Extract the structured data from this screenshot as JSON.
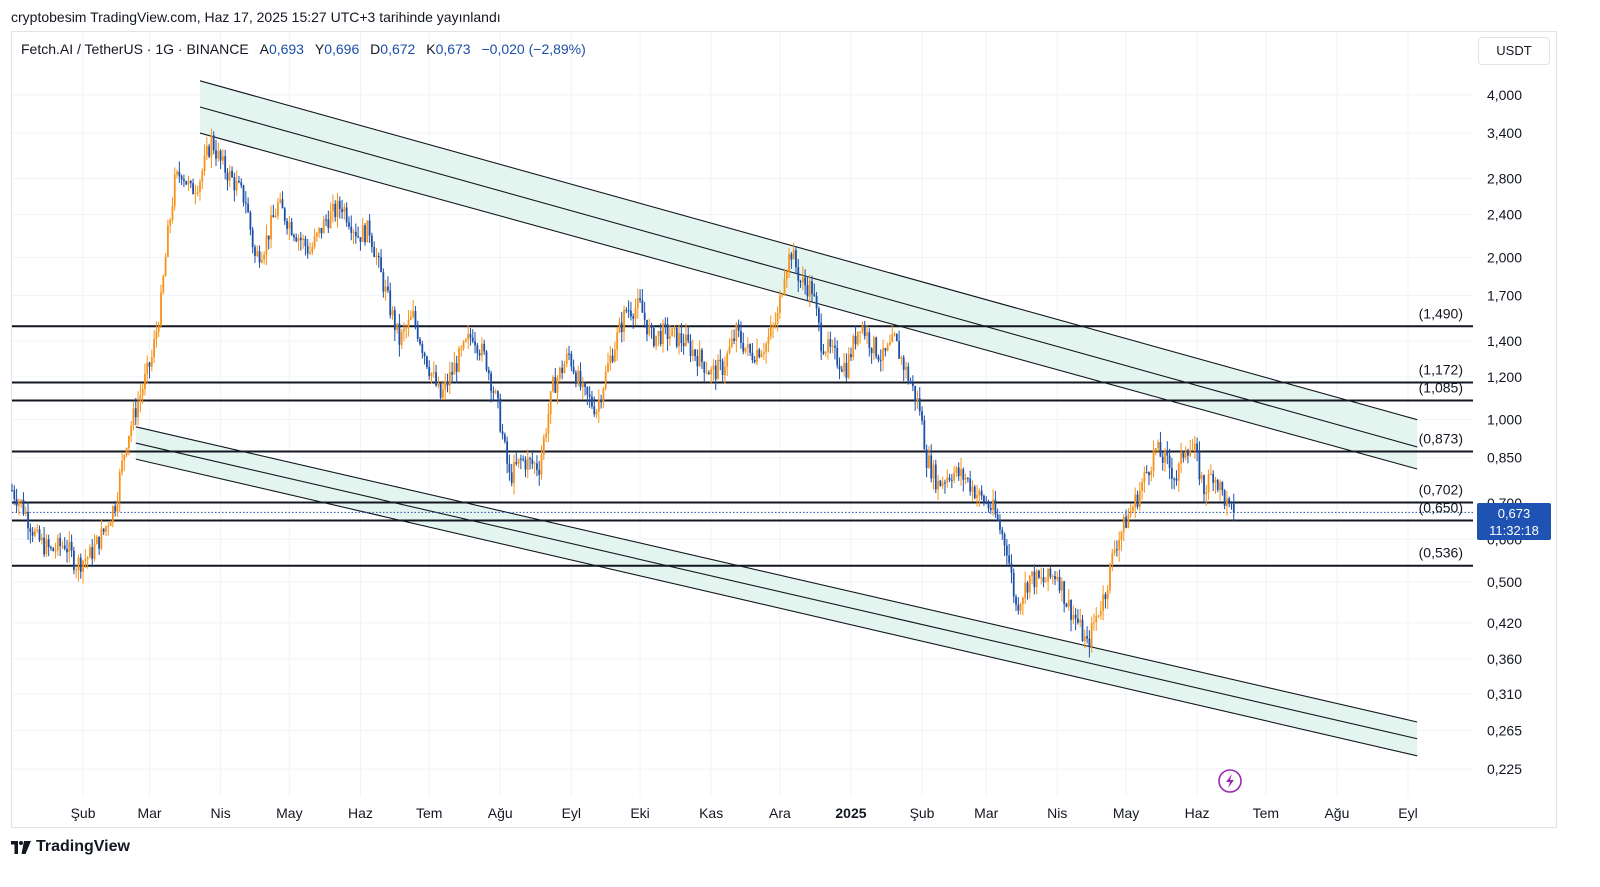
{
  "header": {
    "caption": "cryptobesim TradingView.com, Haz 17, 2025 15:27 UTC+3 tarihinde yayınlandı"
  },
  "legend": {
    "symbol": "Fetch.AI / TetherUS · 1G · BINANCE",
    "open_label": "A",
    "open": "0,693",
    "high_label": "Y",
    "high": "0,696",
    "low_label": "D",
    "low": "0,672",
    "close_label": "K",
    "close": "0,673",
    "change": "−0,020 (−2,89%)"
  },
  "toolbar": {
    "currency": "USDT"
  },
  "price_tag": {
    "price": "0,673",
    "countdown": "11:32:18"
  },
  "brand": {
    "name": "TradingView"
  },
  "chart_data": {
    "type": "candlestick",
    "scale": "log",
    "colors": {
      "up": "#f7931a",
      "down": "#1c4fa8",
      "channel_fill": "#e4f5ef",
      "line": "#131722"
    },
    "y_ticks": [
      "4,000",
      "3,400",
      "2,800",
      "2,400",
      "2,000",
      "1,700",
      "1,400",
      "1,200",
      "1,000",
      "0,850",
      "0,700",
      "0,600",
      "0,500",
      "0,420",
      "0,360",
      "0,310",
      "0,265",
      "0,225"
    ],
    "y_tick_values": [
      4.0,
      3.4,
      2.8,
      2.4,
      2.0,
      1.7,
      1.4,
      1.2,
      1.0,
      0.85,
      0.7,
      0.6,
      0.5,
      0.42,
      0.36,
      0.31,
      0.265,
      0.225
    ],
    "x_ticks": [
      {
        "label": "Şub",
        "date": "2024-02-01",
        "bold": false
      },
      {
        "label": "Mar",
        "date": "2024-03-01",
        "bold": false
      },
      {
        "label": "Nis",
        "date": "2024-04-01",
        "bold": false
      },
      {
        "label": "May",
        "date": "2024-05-01",
        "bold": false
      },
      {
        "label": "Haz",
        "date": "2024-06-01",
        "bold": false
      },
      {
        "label": "Tem",
        "date": "2024-07-01",
        "bold": false
      },
      {
        "label": "Ağu",
        "date": "2024-08-01",
        "bold": false
      },
      {
        "label": "Eyl",
        "date": "2024-09-01",
        "bold": false
      },
      {
        "label": "Eki",
        "date": "2024-10-01",
        "bold": false
      },
      {
        "label": "Kas",
        "date": "2024-11-01",
        "bold": false
      },
      {
        "label": "Ara",
        "date": "2024-12-01",
        "bold": false
      },
      {
        "label": "2025",
        "date": "2025-01-01",
        "bold": true
      },
      {
        "label": "Şub",
        "date": "2025-02-01",
        "bold": false
      },
      {
        "label": "Mar",
        "date": "2025-03-01",
        "bold": false
      },
      {
        "label": "Nis",
        "date": "2025-04-01",
        "bold": false
      },
      {
        "label": "May",
        "date": "2025-05-01",
        "bold": false
      },
      {
        "label": "Haz",
        "date": "2025-06-01",
        "bold": false
      },
      {
        "label": "Tem",
        "date": "2025-07-01",
        "bold": false
      },
      {
        "label": "Ağu",
        "date": "2025-08-01",
        "bold": false
      },
      {
        "label": "Eyl",
        "date": "2025-09-01",
        "bold": false
      }
    ],
    "levels": [
      {
        "label": "(1,490)",
        "value": 1.49
      },
      {
        "label": "(1,172)",
        "value": 1.172
      },
      {
        "label": "(1,085)",
        "value": 1.085
      },
      {
        "label": "(0,873)",
        "value": 0.873
      },
      {
        "label": "(0,702)",
        "value": 0.702
      },
      {
        "label": "(0,650)",
        "value": 0.65
      },
      {
        "label": "(0,536)",
        "value": 0.536
      }
    ],
    "current_price": 0.673,
    "channels": [
      {
        "name": "upper",
        "start_date": "2024-03-23",
        "end_date": "2025-09-05",
        "top": [
          4.25,
          1.0
        ],
        "mid": [
          3.8,
          0.89
        ],
        "bottom": [
          3.4,
          0.81
        ]
      },
      {
        "name": "lower",
        "start_date": "2024-02-24",
        "end_date": "2025-09-05",
        "top": [
          0.97,
          0.275
        ],
        "mid": [
          0.905,
          0.256
        ],
        "bottom": [
          0.845,
          0.238
        ]
      }
    ],
    "price_path": [
      [
        "2024-01-01",
        0.74
      ],
      [
        "2024-01-05",
        0.7
      ],
      [
        "2024-01-12",
        0.6
      ],
      [
        "2024-01-18",
        0.57
      ],
      [
        "2024-01-24",
        0.59
      ],
      [
        "2024-01-29",
        0.54
      ],
      [
        "2024-02-04",
        0.56
      ],
      [
        "2024-02-10",
        0.62
      ],
      [
        "2024-02-15",
        0.7
      ],
      [
        "2024-02-20",
        0.92
      ],
      [
        "2024-02-25",
        1.08
      ],
      [
        "2024-03-02",
        1.3
      ],
      [
        "2024-03-06",
        1.65
      ],
      [
        "2024-03-09",
        2.2
      ],
      [
        "2024-03-12",
        2.75
      ],
      [
        "2024-03-15",
        2.9
      ],
      [
        "2024-03-19",
        2.65
      ],
      [
        "2024-03-23",
        2.8
      ],
      [
        "2024-03-28",
        3.3
      ],
      [
        "2024-04-01",
        3.0
      ],
      [
        "2024-04-07",
        2.75
      ],
      [
        "2024-04-12",
        2.55
      ],
      [
        "2024-04-16",
        2.0
      ],
      [
        "2024-04-20",
        2.1
      ],
      [
        "2024-04-26",
        2.5
      ],
      [
        "2024-05-03",
        2.25
      ],
      [
        "2024-05-10",
        2.05
      ],
      [
        "2024-05-17",
        2.35
      ],
      [
        "2024-05-24",
        2.5
      ],
      [
        "2024-05-31",
        2.2
      ],
      [
        "2024-06-05",
        2.25
      ],
      [
        "2024-06-10",
        1.85
      ],
      [
        "2024-06-18",
        1.4
      ],
      [
        "2024-06-24",
        1.55
      ],
      [
        "2024-07-01",
        1.25
      ],
      [
        "2024-07-06",
        1.1
      ],
      [
        "2024-07-12",
        1.25
      ],
      [
        "2024-07-20",
        1.45
      ],
      [
        "2024-07-26",
        1.28
      ],
      [
        "2024-07-31",
        1.05
      ],
      [
        "2024-08-05",
        0.78
      ],
      [
        "2024-08-10",
        0.84
      ],
      [
        "2024-08-18",
        0.82
      ],
      [
        "2024-08-24",
        1.15
      ],
      [
        "2024-08-31",
        1.32
      ],
      [
        "2024-09-06",
        1.12
      ],
      [
        "2024-09-12",
        1.05
      ],
      [
        "2024-09-18",
        1.3
      ],
      [
        "2024-09-25",
        1.6
      ],
      [
        "2024-10-01",
        1.62
      ],
      [
        "2024-10-06",
        1.42
      ],
      [
        "2024-10-12",
        1.45
      ],
      [
        "2024-10-20",
        1.4
      ],
      [
        "2024-10-27",
        1.3
      ],
      [
        "2024-11-01",
        1.22
      ],
      [
        "2024-11-06",
        1.25
      ],
      [
        "2024-11-12",
        1.45
      ],
      [
        "2024-11-18",
        1.32
      ],
      [
        "2024-11-25",
        1.38
      ],
      [
        "2024-11-30",
        1.55
      ],
      [
        "2024-12-03",
        1.9
      ],
      [
        "2024-12-06",
        2.05
      ],
      [
        "2024-12-10",
        1.8
      ],
      [
        "2024-12-15",
        1.75
      ],
      [
        "2024-12-19",
        1.4
      ],
      [
        "2024-12-24",
        1.32
      ],
      [
        "2024-12-30",
        1.25
      ],
      [
        "2025-01-05",
        1.52
      ],
      [
        "2025-01-10",
        1.38
      ],
      [
        "2025-01-15",
        1.3
      ],
      [
        "2025-01-20",
        1.4
      ],
      [
        "2025-01-26",
        1.2
      ],
      [
        "2025-01-31",
        1.05
      ],
      [
        "2025-02-03",
        0.85
      ],
      [
        "2025-02-08",
        0.76
      ],
      [
        "2025-02-14",
        0.8
      ],
      [
        "2025-02-20",
        0.78
      ],
      [
        "2025-02-26",
        0.72
      ],
      [
        "2025-03-04",
        0.68
      ],
      [
        "2025-03-10",
        0.58
      ],
      [
        "2025-03-14",
        0.45
      ],
      [
        "2025-03-20",
        0.51
      ],
      [
        "2025-03-26",
        0.5
      ],
      [
        "2025-04-01",
        0.52
      ],
      [
        "2025-04-05",
        0.46
      ],
      [
        "2025-04-10",
        0.42
      ],
      [
        "2025-04-14",
        0.38
      ],
      [
        "2025-04-17",
        0.42
      ],
      [
        "2025-04-22",
        0.48
      ],
      [
        "2025-04-26",
        0.58
      ],
      [
        "2025-05-01",
        0.65
      ],
      [
        "2025-05-06",
        0.72
      ],
      [
        "2025-05-10",
        0.8
      ],
      [
        "2025-05-14",
        0.88
      ],
      [
        "2025-05-19",
        0.83
      ],
      [
        "2025-05-23",
        0.78
      ],
      [
        "2025-05-27",
        0.9
      ],
      [
        "2025-05-31",
        0.87
      ],
      [
        "2025-06-04",
        0.74
      ],
      [
        "2025-06-08",
        0.8
      ],
      [
        "2025-06-12",
        0.73
      ],
      [
        "2025-06-15",
        0.68
      ],
      [
        "2025-06-17",
        0.673
      ]
    ]
  }
}
